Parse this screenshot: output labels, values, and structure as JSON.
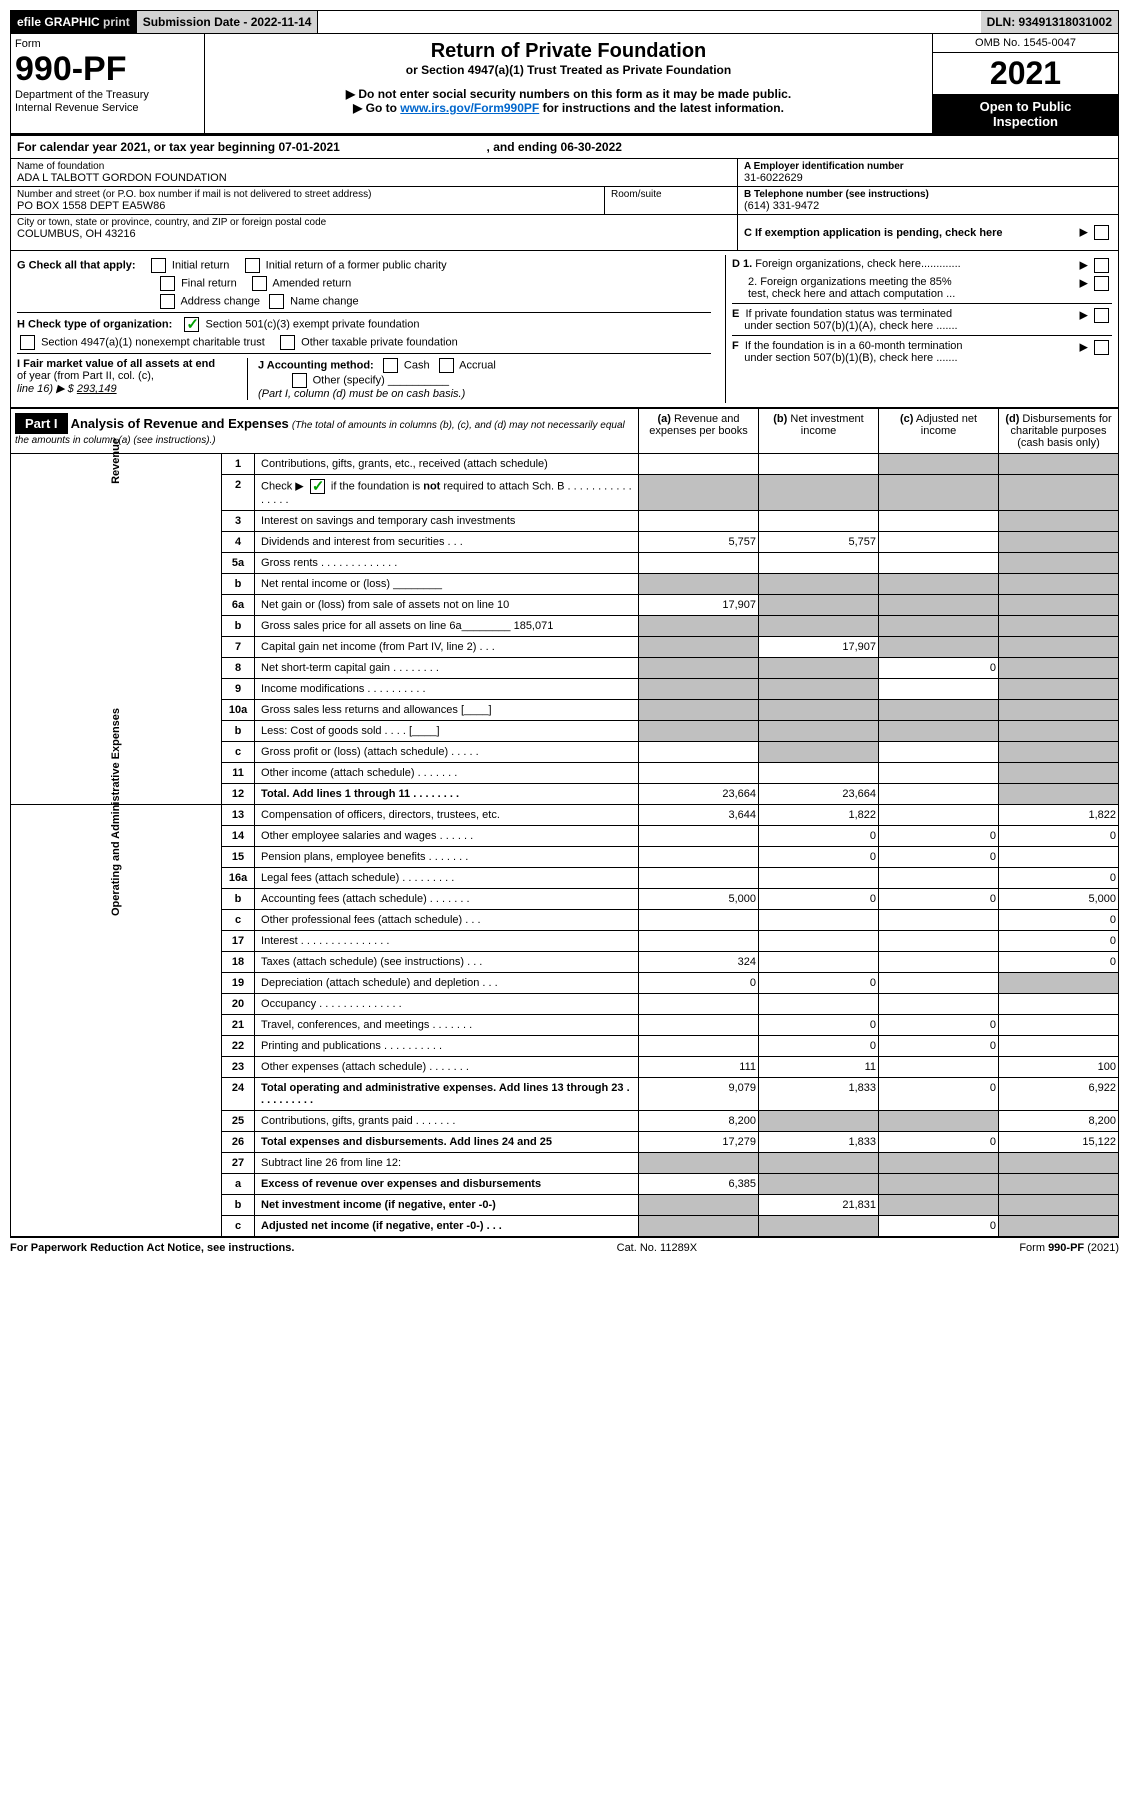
{
  "topbar": {
    "efile": "efile",
    "graphic": "GRAPHIC",
    "print": "print",
    "submission_label": "Submission Date - 2022-11-14",
    "dln": "DLN: 93491318031002"
  },
  "header": {
    "form_word": "Form",
    "form_number": "990-PF",
    "dept1": "Department of the Treasury",
    "dept2": "Internal Revenue Service",
    "title": "Return of Private Foundation",
    "subtitle": "or Section 4947(a)(1) Trust Treated as Private Foundation",
    "note1": "▶ Do not enter social security numbers on this form as it may be made public.",
    "note2_pre": "▶ Go to ",
    "note2_link": "www.irs.gov/Form990PF",
    "note2_post": " for instructions and the latest information.",
    "omb": "OMB No. 1545-0047",
    "year": "2021",
    "open_public1": "Open to Public",
    "open_public2": "Inspection"
  },
  "calyear": {
    "text_pre": "For calendar year 2021, or tax year beginning ",
    "begin": "07-01-2021",
    "text_mid": " , and ending ",
    "end": "06-30-2022"
  },
  "info": {
    "name_label": "Name of foundation",
    "name_value": "ADA L TALBOTT GORDON FOUNDATION",
    "addr_label": "Number and street (or P.O. box number if mail is not delivered to street address)",
    "addr_value": "PO BOX 1558 DEPT EA5W86",
    "room_label": "Room/suite",
    "city_label": "City or town, state or province, country, and ZIP or foreign postal code",
    "city_value": "COLUMBUS, OH  43216",
    "a_label": "A Employer identification number",
    "a_value": "31-6022629",
    "b_label": "B Telephone number (see instructions)",
    "b_value": "(614) 331-9472",
    "c_label": "C If exemption application is pending, check here"
  },
  "checks": {
    "g_label": "G Check all that apply:",
    "g1": "Initial return",
    "g2": "Initial return of a former public charity",
    "g3": "Final return",
    "g4": "Amended return",
    "g5": "Address change",
    "g6": "Name change",
    "h_label": "H Check type of organization:",
    "h1": "Section 501(c)(3) exempt private foundation",
    "h2": "Section 4947(a)(1) nonexempt charitable trust",
    "h3": "Other taxable private foundation",
    "i_label1": "I Fair market value of all assets at end",
    "i_label2": "of year (from Part II, col. (c),",
    "i_label3": "line 16) ▶ $ ",
    "i_value": "293,149",
    "j_label": "J Accounting method:",
    "j1": "Cash",
    "j2": "Accrual",
    "j3": "Other (specify)",
    "j_note": "(Part I, column (d) must be on cash basis.)",
    "d1": "D 1. Foreign organizations, check here.............",
    "d2a": "2. Foreign organizations meeting the 85%",
    "d2b": "test, check here and attach computation ...",
    "e1": "E  If private foundation status was terminated",
    "e2": "under section 507(b)(1)(A), check here .......",
    "f1": "F  If the foundation is in a 60-month termination",
    "f2": "under section 507(b)(1)(B), check here ......."
  },
  "part1": {
    "label": "Part I",
    "title": "Analysis of Revenue and Expenses",
    "title_note": " (The total of amounts in columns (b), (c), and (d) may not necessarily equal the amounts in column (a) (see instructions).)",
    "col_a": "(a) Revenue and expenses per books",
    "col_b": "(b) Net investment income",
    "col_c": "(c) Adjusted net income",
    "col_d": "(d) Disbursements for charitable purposes (cash basis only)",
    "side_revenue": "Revenue",
    "side_expenses": "Operating and Administrative Expenses"
  },
  "rows": [
    {
      "n": "1",
      "label": "Contributions, gifts, grants, etc., received (attach schedule)",
      "a": "",
      "b": "",
      "c": "s",
      "d": "s"
    },
    {
      "n": "2",
      "label": "Check ▶ ☑ if the foundation is not required to attach Sch. B    .  .  .  .  .  .  .  .  .  .  .  .  .  .  .  .",
      "a": "s",
      "b": "s",
      "c": "s",
      "d": "s",
      "check": true
    },
    {
      "n": "3",
      "label": "Interest on savings and temporary cash investments",
      "a": "",
      "b": "",
      "c": "",
      "d": "s"
    },
    {
      "n": "4",
      "label": "Dividends and interest from securities    .   .   .",
      "a": "5,757",
      "b": "5,757",
      "c": "",
      "d": "s"
    },
    {
      "n": "5a",
      "label": "Gross rents   .   .   .   .   .   .   .   .   .   .   .   .   .",
      "a": "",
      "b": "",
      "c": "",
      "d": "s"
    },
    {
      "n": "b",
      "label": "Net rental income or (loss) ________",
      "a": "s",
      "b": "s",
      "c": "s",
      "d": "s"
    },
    {
      "n": "6a",
      "label": "Net gain or (loss) from sale of assets not on line 10",
      "a": "17,907",
      "b": "s",
      "c": "s",
      "d": "s"
    },
    {
      "n": "b",
      "label": "Gross sales price for all assets on line 6a________ 185,071",
      "a": "s",
      "b": "s",
      "c": "s",
      "d": "s"
    },
    {
      "n": "7",
      "label": "Capital gain net income (from Part IV, line 2)   .   .   .",
      "a": "s",
      "b": "17,907",
      "c": "s",
      "d": "s"
    },
    {
      "n": "8",
      "label": "Net short-term capital gain   .   .   .   .   .   .   .   .",
      "a": "s",
      "b": "s",
      "c": "0",
      "d": "s"
    },
    {
      "n": "9",
      "label": "Income modifications   .   .   .   .   .   .   .   .   .   .",
      "a": "s",
      "b": "s",
      "c": "",
      "d": "s"
    },
    {
      "n": "10a",
      "label": "Gross sales less returns and allowances  [____]",
      "a": "s",
      "b": "s",
      "c": "s",
      "d": "s"
    },
    {
      "n": "b",
      "label": "Less: Cost of goods sold   .   .   .   .   [____]",
      "a": "s",
      "b": "s",
      "c": "s",
      "d": "s"
    },
    {
      "n": "c",
      "label": "Gross profit or (loss) (attach schedule)   .   .   .   .   .",
      "a": "",
      "b": "s",
      "c": "",
      "d": "s"
    },
    {
      "n": "11",
      "label": "Other income (attach schedule)    .   .   .   .   .   .   .",
      "a": "",
      "b": "",
      "c": "",
      "d": "s"
    },
    {
      "n": "12",
      "label": "Total. Add lines 1 through 11   .   .   .   .   .   .   .   .",
      "a": "23,664",
      "b": "23,664",
      "c": "",
      "d": "s",
      "bold": true
    },
    {
      "n": "13",
      "label": "Compensation of officers, directors, trustees, etc.",
      "a": "3,644",
      "b": "1,822",
      "c": "",
      "d": "1,822"
    },
    {
      "n": "14",
      "label": "Other employee salaries and wages   .   .   .   .   .   .",
      "a": "",
      "b": "0",
      "c": "0",
      "d": "0"
    },
    {
      "n": "15",
      "label": "Pension plans, employee benefits   .   .   .   .   .   .   .",
      "a": "",
      "b": "0",
      "c": "0",
      "d": ""
    },
    {
      "n": "16a",
      "label": "Legal fees (attach schedule)   .   .   .   .   .   .   .   .   .",
      "a": "",
      "b": "",
      "c": "",
      "d": "0"
    },
    {
      "n": "b",
      "label": "Accounting fees (attach schedule)   .   .   .   .   .   .   .",
      "a": "5,000",
      "b": "0",
      "c": "0",
      "d": "5,000"
    },
    {
      "n": "c",
      "label": "Other professional fees (attach schedule)   .   .   .",
      "a": "",
      "b": "",
      "c": "",
      "d": "0"
    },
    {
      "n": "17",
      "label": "Interest   .   .   .   .   .   .   .   .   .   .   .   .   .   .   .",
      "a": "",
      "b": "",
      "c": "",
      "d": "0"
    },
    {
      "n": "18",
      "label": "Taxes (attach schedule) (see instructions)    .   .   .",
      "a": "324",
      "b": "",
      "c": "",
      "d": "0"
    },
    {
      "n": "19",
      "label": "Depreciation (attach schedule) and depletion    .   .   .",
      "a": "0",
      "b": "0",
      "c": "",
      "d": "s"
    },
    {
      "n": "20",
      "label": "Occupancy   .   .   .   .   .   .   .   .   .   .   .   .   .   .",
      "a": "",
      "b": "",
      "c": "",
      "d": ""
    },
    {
      "n": "21",
      "label": "Travel, conferences, and meetings   .   .   .   .   .   .   .",
      "a": "",
      "b": "0",
      "c": "0",
      "d": ""
    },
    {
      "n": "22",
      "label": "Printing and publications   .   .   .   .   .   .   .   .   .   .",
      "a": "",
      "b": "0",
      "c": "0",
      "d": ""
    },
    {
      "n": "23",
      "label": "Other expenses (attach schedule)   .   .   .   .   .   .   .",
      "a": "111",
      "b": "11",
      "c": "",
      "d": "100"
    },
    {
      "n": "24",
      "label": "Total operating and administrative expenses. Add lines 13 through 23   .   .   .   .   .   .   .   .   .   .",
      "a": "9,079",
      "b": "1,833",
      "c": "0",
      "d": "6,922",
      "bold": true
    },
    {
      "n": "25",
      "label": "Contributions, gifts, grants paid    .   .   .   .   .   .   .",
      "a": "8,200",
      "b": "s",
      "c": "s",
      "d": "8,200"
    },
    {
      "n": "26",
      "label": "Total expenses and disbursements. Add lines 24 and 25",
      "a": "17,279",
      "b": "1,833",
      "c": "0",
      "d": "15,122",
      "bold": true
    },
    {
      "n": "27",
      "label": "Subtract line 26 from line 12:",
      "a": "s",
      "b": "s",
      "c": "s",
      "d": "s"
    },
    {
      "n": "a",
      "label": "Excess of revenue over expenses and disbursements",
      "a": "6,385",
      "b": "s",
      "c": "s",
      "d": "s",
      "bold": true
    },
    {
      "n": "b",
      "label": "Net investment income (if negative, enter -0-)",
      "a": "s",
      "b": "21,831",
      "c": "s",
      "d": "s",
      "bold": true
    },
    {
      "n": "c",
      "label": "Adjusted net income  (if negative, enter -0-)   .   .   .",
      "a": "s",
      "b": "s",
      "c": "0",
      "d": "s",
      "bold": true
    }
  ],
  "footer": {
    "left": "For Paperwork Reduction Act Notice, see instructions.",
    "mid": "Cat. No. 11289X",
    "right": "Form 990-PF (2021)"
  }
}
